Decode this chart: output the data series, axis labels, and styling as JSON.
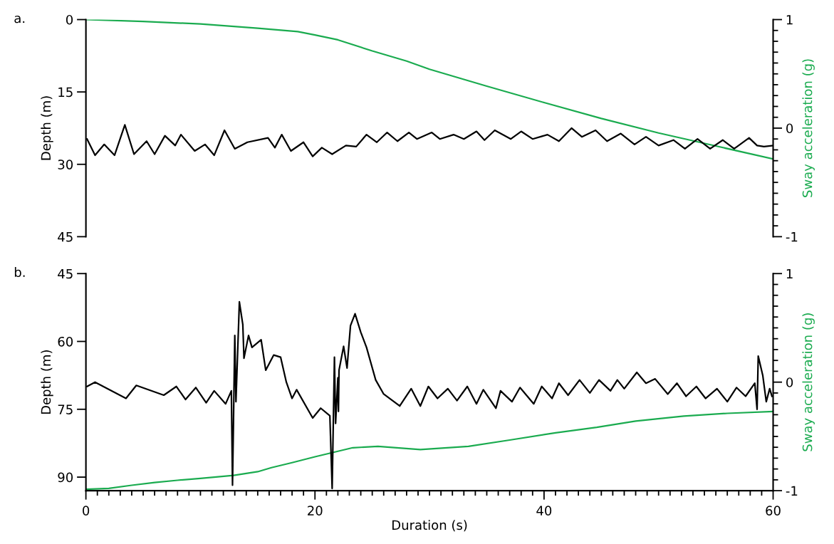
{
  "chart_data": [
    {
      "type": "line",
      "annotations": [
        "a."
      ],
      "ylabel": "Depth (m)",
      "y2label": "Sway acceleration (g)",
      "xlim": [
        0,
        60
      ],
      "ylim": [
        45,
        0
      ],
      "yticks": [
        0,
        15,
        30,
        45
      ],
      "y2lim": [
        -1,
        1
      ],
      "y2ticks": [
        -1,
        0,
        1
      ],
      "tick_labels": "y",
      "series": [
        {
          "color": "#1aab4f",
          "axis": "y",
          "x": [
            0,
            5,
            10,
            15,
            18.5,
            20,
            22,
            25,
            28,
            30,
            35,
            40,
            45,
            50,
            55,
            60
          ],
          "values": [
            0,
            0.4,
            0.9,
            1.8,
            2.5,
            3.2,
            4.2,
            6.5,
            8.6,
            10.3,
            13.8,
            17.2,
            20.5,
            23.5,
            26.2,
            28.9
          ]
        },
        {
          "color": "#000000",
          "axis": "y2",
          "x": [
            0.1,
            0.8,
            1.6,
            2.5,
            3.4,
            4.2,
            5.3,
            6.0,
            6.9,
            7.8,
            8.3,
            9.5,
            10.4,
            11.2,
            12.1,
            13.0,
            14.1,
            15.9,
            16.5,
            17.1,
            17.9,
            19.0,
            19.8,
            20.6,
            21.5,
            22.7,
            23.6,
            24.5,
            25.4,
            26.3,
            27.2,
            28.2,
            28.9,
            30.2,
            30.9,
            32.1,
            33.0,
            34.1,
            34.8,
            35.7,
            37.1,
            38.0,
            39.0,
            40.3,
            41.3,
            42.4,
            43.3,
            44.5,
            45.5,
            46.7,
            47.9,
            48.9,
            50.0,
            51.3,
            52.3,
            53.4,
            54.5,
            55.6,
            56.6,
            57.9,
            58.6,
            59.2,
            60
          ],
          "values": [
            -0.1,
            -0.25,
            -0.15,
            -0.25,
            0.03,
            -0.24,
            -0.12,
            -0.24,
            -0.07,
            -0.16,
            -0.06,
            -0.21,
            -0.15,
            -0.25,
            -0.02,
            -0.19,
            -0.13,
            -0.09,
            -0.18,
            -0.06,
            -0.21,
            -0.13,
            -0.26,
            -0.18,
            -0.24,
            -0.16,
            -0.17,
            -0.06,
            -0.13,
            -0.04,
            -0.12,
            -0.04,
            -0.1,
            -0.04,
            -0.1,
            -0.06,
            -0.1,
            -0.03,
            -0.11,
            -0.02,
            -0.1,
            -0.03,
            -0.1,
            -0.06,
            -0.12,
            0,
            -0.08,
            -0.02,
            -0.12,
            -0.05,
            -0.15,
            -0.08,
            -0.16,
            -0.11,
            -0.19,
            -0.1,
            -0.19,
            -0.11,
            -0.19,
            -0.09,
            -0.16,
            -0.17,
            -0.16
          ]
        }
      ]
    },
    {
      "type": "line",
      "annotations": [
        "b."
      ],
      "xlabel": "Duration (s)",
      "ylabel": "Depth (m)",
      "y2label": "Sway acceleration (g)",
      "xlim": [
        0,
        60
      ],
      "xticks": [
        0,
        20,
        40,
        60
      ],
      "ylim": [
        93,
        45
      ],
      "yticks": [
        45,
        60,
        75,
        90
      ],
      "y2lim": [
        -1,
        1
      ],
      "y2ticks": [
        -1,
        0,
        1
      ],
      "series": [
        {
          "color": "#1aab4f",
          "axis": "y",
          "x": [
            0,
            2,
            4,
            6,
            8,
            10,
            12.9,
            15,
            16.2,
            18,
            20,
            23.3,
            25.5,
            29.2,
            33.4,
            37,
            41,
            44.6,
            48,
            52.2,
            56,
            60
          ],
          "values": [
            92.7,
            92.5,
            91.8,
            91.2,
            90.7,
            90.3,
            89.6,
            88.8,
            87.9,
            86.8,
            85.5,
            83.5,
            83.2,
            83.9,
            83.2,
            81.8,
            80.2,
            79.0,
            77.6,
            76.5,
            75.9,
            75.5
          ]
        },
        {
          "color": "#000000",
          "axis": "y2",
          "x": [
            0.1,
            0.8,
            3.5,
            4.4,
            6.8,
            7.9,
            8.7,
            9.6,
            10.5,
            11.2,
            12.2,
            12.7,
            12.8,
            13.0,
            13.1,
            13.4,
            13.7,
            13.8,
            14.2,
            14.5,
            15.3,
            15.7,
            16.4,
            17.0,
            17.5,
            18.0,
            18.4,
            19.8,
            20.5,
            21.3,
            21.5,
            21.7,
            21.8,
            22.0,
            22.05,
            22.1,
            22.5,
            22.8,
            23.1,
            23.5,
            24.0,
            24.5,
            25.3,
            26.0,
            27.4,
            28.4,
            29.2,
            29.9,
            30.7,
            31.6,
            32.4,
            33.3,
            34.1,
            34.7,
            35.8,
            36.2,
            37.2,
            37.9,
            39.1,
            39.8,
            40.7,
            41.3,
            42.1,
            43.1,
            44.0,
            44.8,
            45.8,
            46.4,
            47.0,
            48.1,
            48.9,
            49.7,
            50.8,
            51.6,
            52.4,
            53.3,
            54.1,
            55.1,
            56.0,
            56.8,
            57.6,
            58.4,
            58.6,
            58.7,
            59.1,
            59.4,
            59.7,
            59.9
          ],
          "values": [
            -0.04,
            0,
            -0.15,
            -0.03,
            -0.12,
            -0.04,
            -0.16,
            -0.05,
            -0.19,
            -0.08,
            -0.2,
            -0.08,
            -0.95,
            0.43,
            -0.18,
            0.74,
            0.53,
            0.22,
            0.43,
            0.32,
            0.39,
            0.11,
            0.25,
            0.23,
            0,
            -0.15,
            -0.07,
            -0.33,
            -0.24,
            -0.31,
            -0.98,
            0.23,
            -0.38,
            0.04,
            -0.27,
            0.11,
            0.33,
            0.13,
            0.52,
            0.63,
            0.46,
            0.32,
            0.02,
            -0.11,
            -0.22,
            -0.06,
            -0.22,
            -0.04,
            -0.15,
            -0.06,
            -0.17,
            -0.04,
            -0.2,
            -0.07,
            -0.24,
            -0.08,
            -0.18,
            -0.05,
            -0.2,
            -0.04,
            -0.15,
            -0.01,
            -0.12,
            0.02,
            -0.1,
            0.02,
            -0.08,
            0.02,
            -0.06,
            0.09,
            -0.01,
            0.03,
            -0.11,
            -0.01,
            -0.13,
            -0.04,
            -0.15,
            -0.06,
            -0.18,
            -0.05,
            -0.13,
            -0.01,
            -0.25,
            0.24,
            0.06,
            -0.18,
            -0.06,
            -0.13
          ]
        }
      ]
    }
  ]
}
